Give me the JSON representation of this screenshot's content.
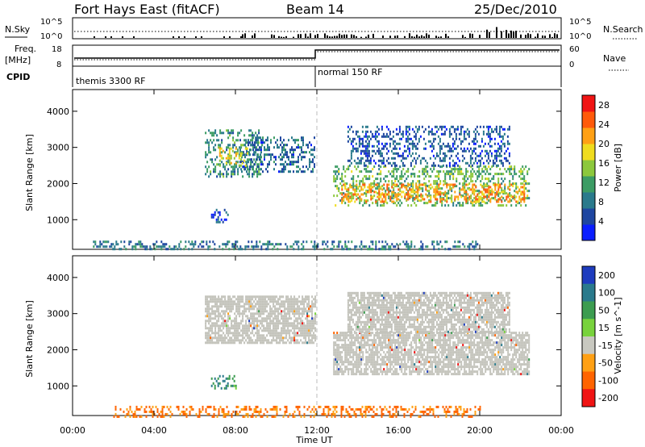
{
  "header": {
    "station": "Fort Hays East (fitACF)",
    "beam": "Beam 14",
    "date": "25/Dec/2010"
  },
  "top_panels": {
    "nsky_label": "N.Sky",
    "nsearch_label": "N.Search",
    "freq_label": "Freq.",
    "freq_unit": "[MHz]",
    "nave_label": "Nave",
    "cpid_label": "CPID",
    "nsky_ticks": [
      "10^5",
      "10^0"
    ],
    "nsearch_ticks": [
      "10^5",
      "10^0"
    ],
    "freq_ticks": [
      "18",
      "8"
    ],
    "nave_ticks": [
      "60",
      "0"
    ],
    "cpid_segments": [
      {
        "label": "themis 3300 RF",
        "start_hour": 0,
        "end_hour": 12
      },
      {
        "label": "normal 150 RF",
        "start_hour": 12,
        "end_hour": 24
      }
    ]
  },
  "chart_data": [
    {
      "type": "heatmap",
      "name": "power",
      "ylabel": "Slant Range [km]",
      "xlabel": "Time UT",
      "x_ticks": [
        "00:00",
        "04:00",
        "08:00",
        "12:00",
        "16:00",
        "20:00",
        "00:00"
      ],
      "y_ticks": [
        1000,
        2000,
        3000,
        4000
      ],
      "xlim_hours": [
        0,
        24
      ],
      "ylim_km": [
        180,
        4600
      ],
      "colorbar": {
        "label": "Power [dB]",
        "ticks": [
          4,
          8,
          12,
          16,
          20,
          24,
          28
        ],
        "range": [
          0,
          30
        ],
        "colors": [
          "#0a1eff",
          "#1e46a0",
          "#2a7a8c",
          "#3c9c64",
          "#8cc83c",
          "#f0dc1e",
          "#ffa014",
          "#ff5a0a",
          "#f01414"
        ]
      },
      "regions": [
        {
          "t_start": 6.5,
          "t_end": 9.3,
          "r_low": 2200,
          "r_high": 3500,
          "level": 10
        },
        {
          "t_start": 8.2,
          "t_end": 11.9,
          "r_low": 2300,
          "r_high": 3300,
          "level": 7
        },
        {
          "t_start": 7.2,
          "t_end": 8.6,
          "r_low": 2500,
          "r_high": 3000,
          "level": 18
        },
        {
          "t_start": 6.8,
          "t_end": 7.6,
          "r_low": 900,
          "r_high": 1300,
          "level": 5
        },
        {
          "t_start": 12.8,
          "t_end": 22.4,
          "r_low": 1400,
          "r_high": 2500,
          "level": 13
        },
        {
          "t_start": 13.2,
          "t_end": 22.2,
          "r_low": 1500,
          "r_high": 2000,
          "level": 22
        },
        {
          "t_start": 13.5,
          "t_end": 21.5,
          "r_low": 2500,
          "r_high": 3600,
          "level": 6
        },
        {
          "t_start": 1.0,
          "t_end": 20.0,
          "r_low": 180,
          "r_high": 420,
          "level": 8
        }
      ]
    },
    {
      "type": "heatmap",
      "name": "velocity",
      "ylabel": "Slant Range [km]",
      "xlabel": "Time UT",
      "x_ticks": [
        "00:00",
        "04:00",
        "08:00",
        "12:00",
        "16:00",
        "20:00",
        "00:00"
      ],
      "y_ticks": [
        1000,
        2000,
        3000,
        4000
      ],
      "xlim_hours": [
        0,
        24
      ],
      "ylim_km": [
        180,
        4600
      ],
      "colorbar": {
        "label": "Velocity [m s^-1]",
        "ticks": [
          200,
          100,
          50,
          15,
          -15,
          -50,
          -100,
          -200
        ],
        "colors": [
          "#1e3cbe",
          "#2a7a8c",
          "#3c9c50",
          "#78d23c",
          "#c8c8c0",
          "#ffa014",
          "#ff6400",
          "#f01414"
        ]
      },
      "regions": [
        {
          "t_start": 6.5,
          "t_end": 11.9,
          "r_low": 2200,
          "r_high": 3500,
          "level": "ground-scatter"
        },
        {
          "t_start": 12.8,
          "t_end": 22.4,
          "r_low": 1300,
          "r_high": 2500,
          "level": "ground-scatter"
        },
        {
          "t_start": 13.5,
          "t_end": 21.5,
          "r_low": 2500,
          "r_high": 3600,
          "level": "ground-scatter"
        },
        {
          "t_start": 6.8,
          "t_end": 8.0,
          "r_low": 900,
          "r_high": 1300,
          "level": 40
        },
        {
          "t_start": 2.0,
          "t_end": 20.0,
          "r_low": 180,
          "r_high": 450,
          "level": -60
        }
      ]
    }
  ],
  "x_axis_label": "Time UT"
}
